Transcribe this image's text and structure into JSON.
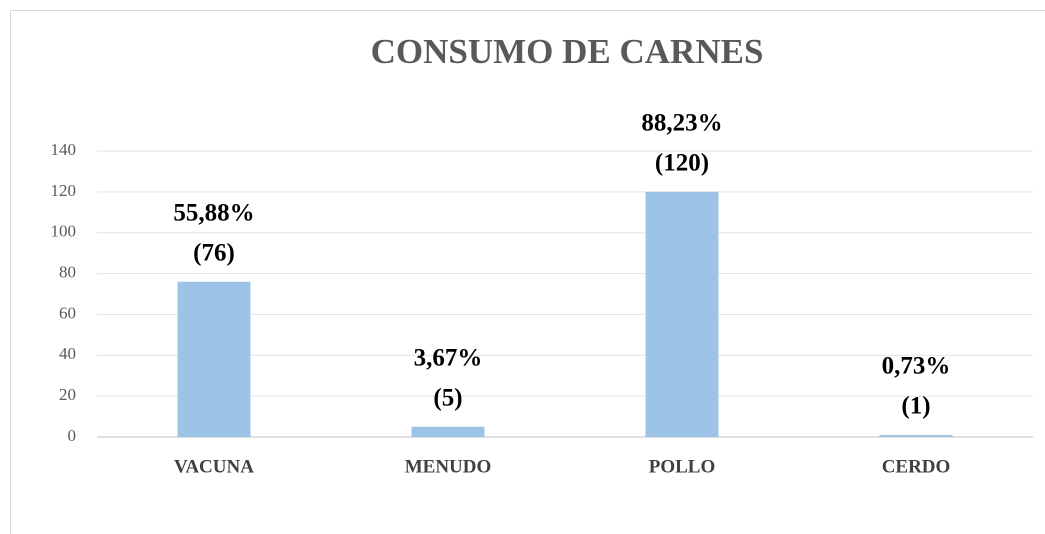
{
  "chart_data": {
    "type": "bar",
    "title": "CONSUMO DE CARNES",
    "categories": [
      "VACUNA",
      "MENUDO",
      "POLLO",
      "CERDO"
    ],
    "values": [
      76,
      5,
      120,
      1
    ],
    "percent_labels": [
      "55,88%",
      "3,67%",
      "88,23%",
      "0,73%"
    ],
    "value_labels": [
      "(76)",
      "(5)",
      "(120)",
      "(1)"
    ],
    "color": "#9dc3e6",
    "ylim": [
      0,
      140
    ],
    "yticks": [
      0,
      20,
      40,
      60,
      80,
      100,
      120,
      140
    ],
    "grid": true
  }
}
